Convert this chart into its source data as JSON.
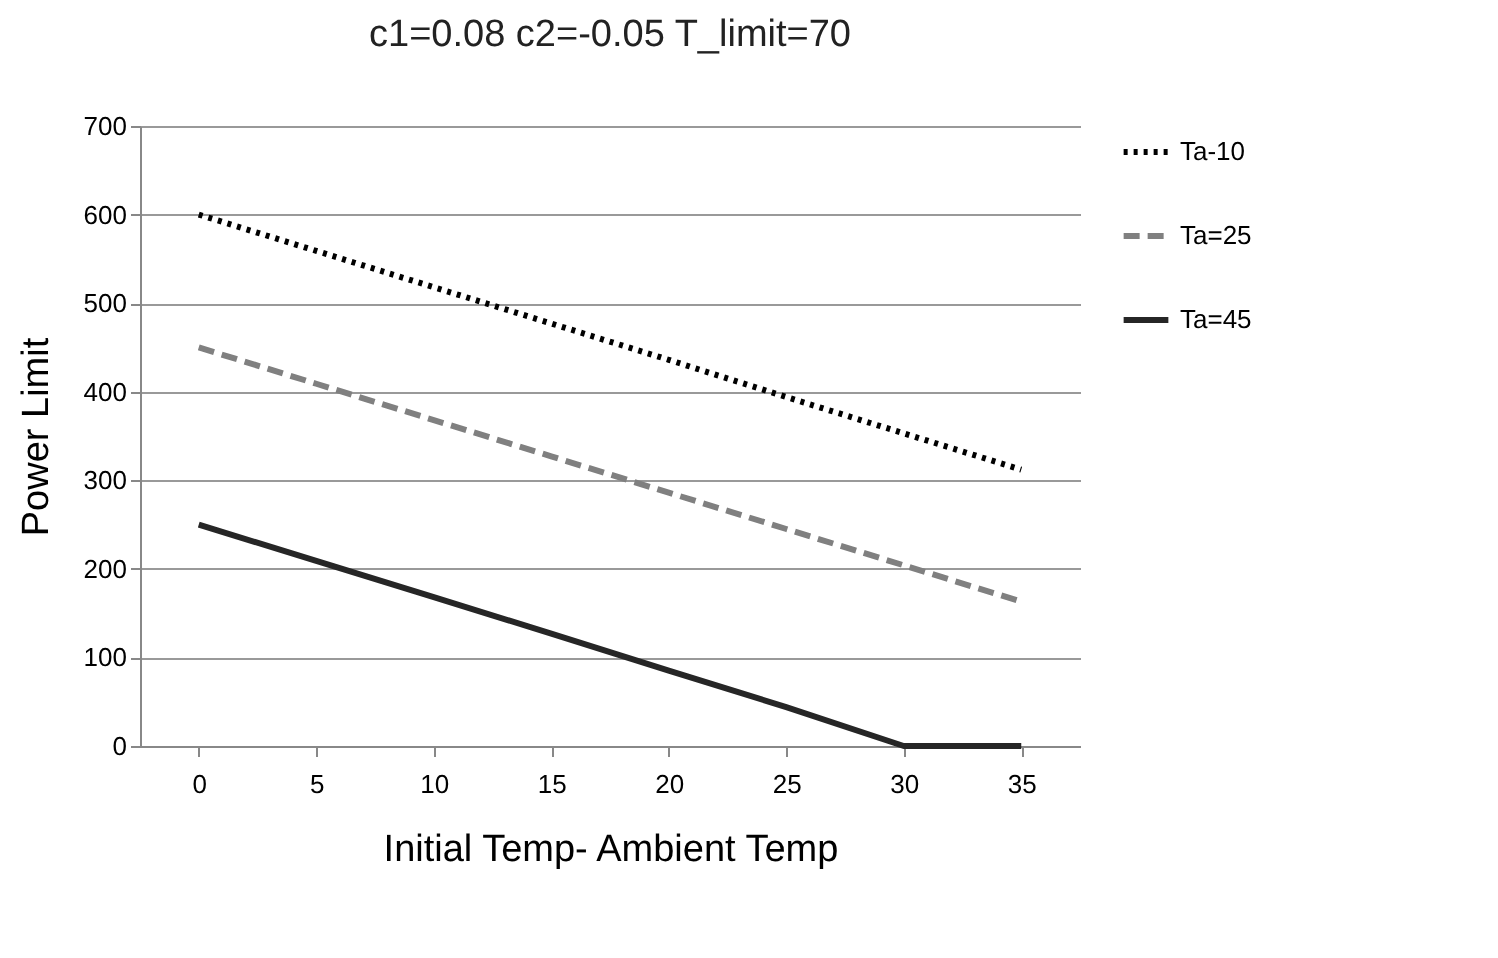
{
  "chart_data": {
    "type": "line",
    "title": "c1=0.08 c2=-0.05 T_limit=70",
    "xlabel": "Initial Temp- Ambient Temp",
    "ylabel": "Power Limit",
    "categories": [
      "0",
      "5",
      "10",
      "15",
      "20",
      "25",
      "30",
      "35"
    ],
    "series": [
      {
        "name": "Ta-10",
        "color": "#000000",
        "line_style": "dotted",
        "values": [
          600,
          559,
          518,
          477,
          436,
          394,
          353,
          312
        ]
      },
      {
        "name": "Ta=25",
        "color": "#808080",
        "line_style": "dashed",
        "values": [
          450,
          409,
          368,
          327,
          286,
          245,
          204,
          163
        ]
      },
      {
        "name": "Ta=45",
        "color": "#262626",
        "line_style": "solid",
        "values": [
          250,
          209,
          168,
          127,
          85,
          44,
          0,
          0
        ]
      }
    ],
    "ylim": [
      0,
      700
    ],
    "yticks": [
      0,
      100,
      200,
      300,
      400,
      500,
      600,
      700
    ],
    "grid": "y",
    "legend": "right",
    "marker": "none"
  }
}
